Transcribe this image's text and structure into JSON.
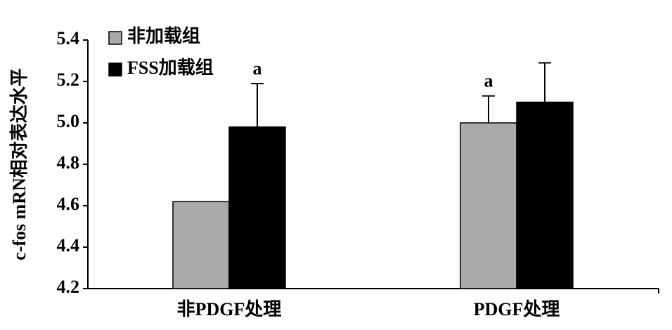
{
  "chart_data": {
    "type": "bar",
    "y_label": "c-fos mRN相对表达水平",
    "categories": [
      "非PDGF处理",
      "PDGF处理"
    ],
    "series": [
      {
        "name": "非加载组",
        "color": "#aaaaaa",
        "values": [
          4.62,
          5.0
        ],
        "errors": [
          null,
          0.13
        ],
        "marks": [
          null,
          "a"
        ]
      },
      {
        "name": "FSS加载组",
        "color": "#000000",
        "values": [
          4.98,
          5.1
        ],
        "errors": [
          0.21,
          0.19
        ],
        "marks": [
          "a",
          null
        ]
      }
    ],
    "ylim": [
      4.2,
      5.4
    ],
    "yticks": [
      4.2,
      4.4,
      4.6,
      4.8,
      {
        "value": 5.0,
        "label": "5.0"
      },
      5.2,
      5.4
    ],
    "legend": "top-left"
  }
}
